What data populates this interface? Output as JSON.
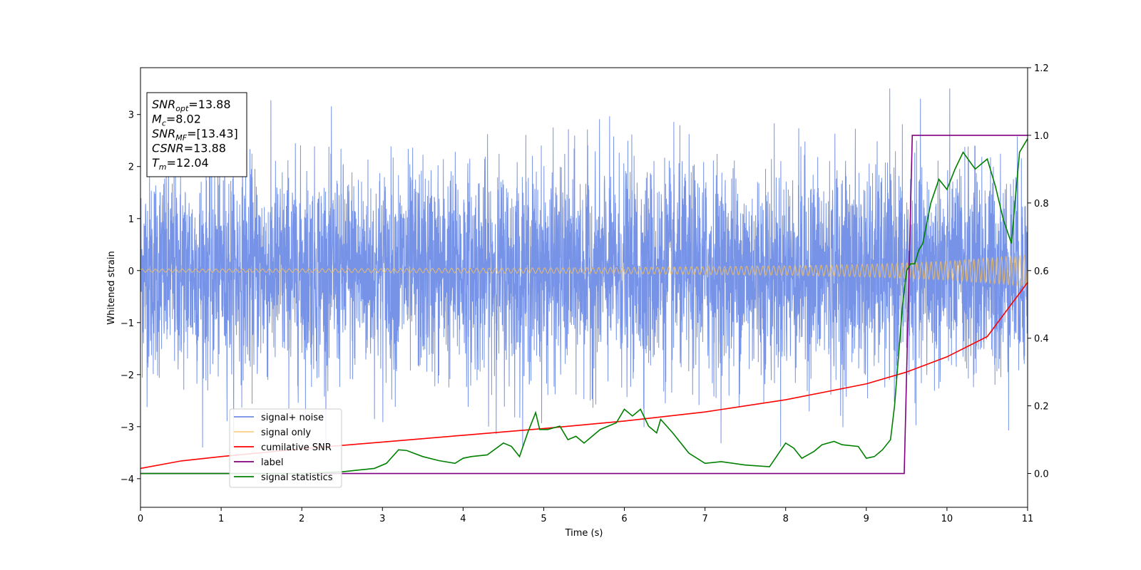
{
  "chart_data": {
    "type": "line",
    "xlabel": "Time (s)",
    "ylabel": "Whitened strain",
    "xlim": [
      0,
      11
    ],
    "ylim_left": [
      -4.55,
      3.9
    ],
    "ylim_right": [
      -0.1,
      1.2
    ],
    "xticks": [
      "0",
      "1",
      "2",
      "3",
      "4",
      "5",
      "6",
      "7",
      "8",
      "9",
      "10",
      "11"
    ],
    "yticks_left": [
      "3",
      "2",
      "1",
      "0",
      "−1",
      "−2",
      "−3",
      "−4"
    ],
    "yticks_right": [
      "1.2",
      "1.0",
      "0.8",
      "0.6",
      "0.4",
      "0.2",
      "0.0"
    ],
    "grid": false,
    "legend_position": "lower-left",
    "info_box": [
      {
        "main": "SNR",
        "sub": "opt",
        "value": "=13.88"
      },
      {
        "main": "M",
        "sub": "c",
        "value": "=8.02"
      },
      {
        "main": "SNR",
        "sub": "MF",
        "value": "=[13.43]"
      },
      {
        "main": "CSNR",
        "sub": "",
        "value": "=13.88"
      },
      {
        "main": "T",
        "sub": "m",
        "value": "=12.04"
      }
    ],
    "series": [
      {
        "name": "signal+ noise",
        "axis": "left",
        "color": "#6f8de6",
        "description": "noisy whitened strain, amplitude roughly between -3.4 and 3.5"
      },
      {
        "name": "signal only",
        "axis": "left",
        "color": "#f5c060",
        "envelope": {
          "x": [
            0,
            2,
            4,
            6,
            8,
            9,
            10,
            11
          ],
          "amp": [
            0.03,
            0.035,
            0.045,
            0.06,
            0.09,
            0.12,
            0.18,
            0.3
          ]
        }
      },
      {
        "name": "cumilative SNR",
        "axis": "right",
        "color": "#ff0000",
        "x": [
          0,
          0.5,
          1,
          2,
          3,
          4,
          5,
          6,
          7,
          8,
          9,
          9.5,
          10,
          10.5,
          11
        ],
        "y": [
          0.015,
          0.037,
          0.05,
          0.073,
          0.093,
          0.113,
          0.133,
          0.155,
          0.182,
          0.218,
          0.265,
          0.3,
          0.345,
          0.405,
          0.565
        ]
      },
      {
        "name": "label",
        "axis": "right",
        "color": "#800080",
        "x": [
          0,
          9.47,
          9.57,
          11
        ],
        "y": [
          0,
          0,
          1,
          1
        ]
      },
      {
        "name": "signal statistics",
        "axis": "right",
        "color": "#008000",
        "x": [
          0,
          1,
          2,
          2.5,
          2.9,
          3.05,
          3.2,
          3.3,
          3.5,
          3.7,
          3.9,
          4.0,
          4.1,
          4.3,
          4.5,
          4.6,
          4.7,
          4.8,
          4.9,
          4.95,
          5.05,
          5.2,
          5.3,
          5.4,
          5.5,
          5.6,
          5.7,
          5.9,
          6.0,
          6.1,
          6.2,
          6.3,
          6.4,
          6.45,
          6.6,
          6.8,
          7.0,
          7.2,
          7.5,
          7.8,
          7.9,
          8.0,
          8.1,
          8.2,
          8.35,
          8.45,
          8.6,
          8.7,
          8.9,
          9.0,
          9.1,
          9.2,
          9.3,
          9.35,
          9.4,
          9.45,
          9.5,
          9.55,
          9.6,
          9.65,
          9.7,
          9.8,
          9.9,
          10.0,
          10.1,
          10.2,
          10.35,
          10.5,
          10.6,
          10.7,
          10.8,
          10.85,
          10.9,
          11.0
        ],
        "y": [
          0.0,
          0.0,
          0.0,
          0.005,
          0.015,
          0.03,
          0.07,
          0.068,
          0.05,
          0.038,
          0.03,
          0.045,
          0.05,
          0.055,
          0.09,
          0.08,
          0.05,
          0.12,
          0.18,
          0.13,
          0.13,
          0.14,
          0.1,
          0.11,
          0.09,
          0.11,
          0.13,
          0.15,
          0.19,
          0.17,
          0.19,
          0.14,
          0.12,
          0.16,
          0.12,
          0.06,
          0.03,
          0.035,
          0.025,
          0.02,
          0.055,
          0.09,
          0.075,
          0.045,
          0.065,
          0.085,
          0.095,
          0.085,
          0.08,
          0.045,
          0.05,
          0.07,
          0.1,
          0.2,
          0.35,
          0.5,
          0.6,
          0.62,
          0.62,
          0.66,
          0.68,
          0.8,
          0.87,
          0.84,
          0.9,
          0.95,
          0.9,
          0.93,
          0.85,
          0.75,
          0.68,
          0.82,
          0.95,
          0.99
        ]
      }
    ]
  }
}
